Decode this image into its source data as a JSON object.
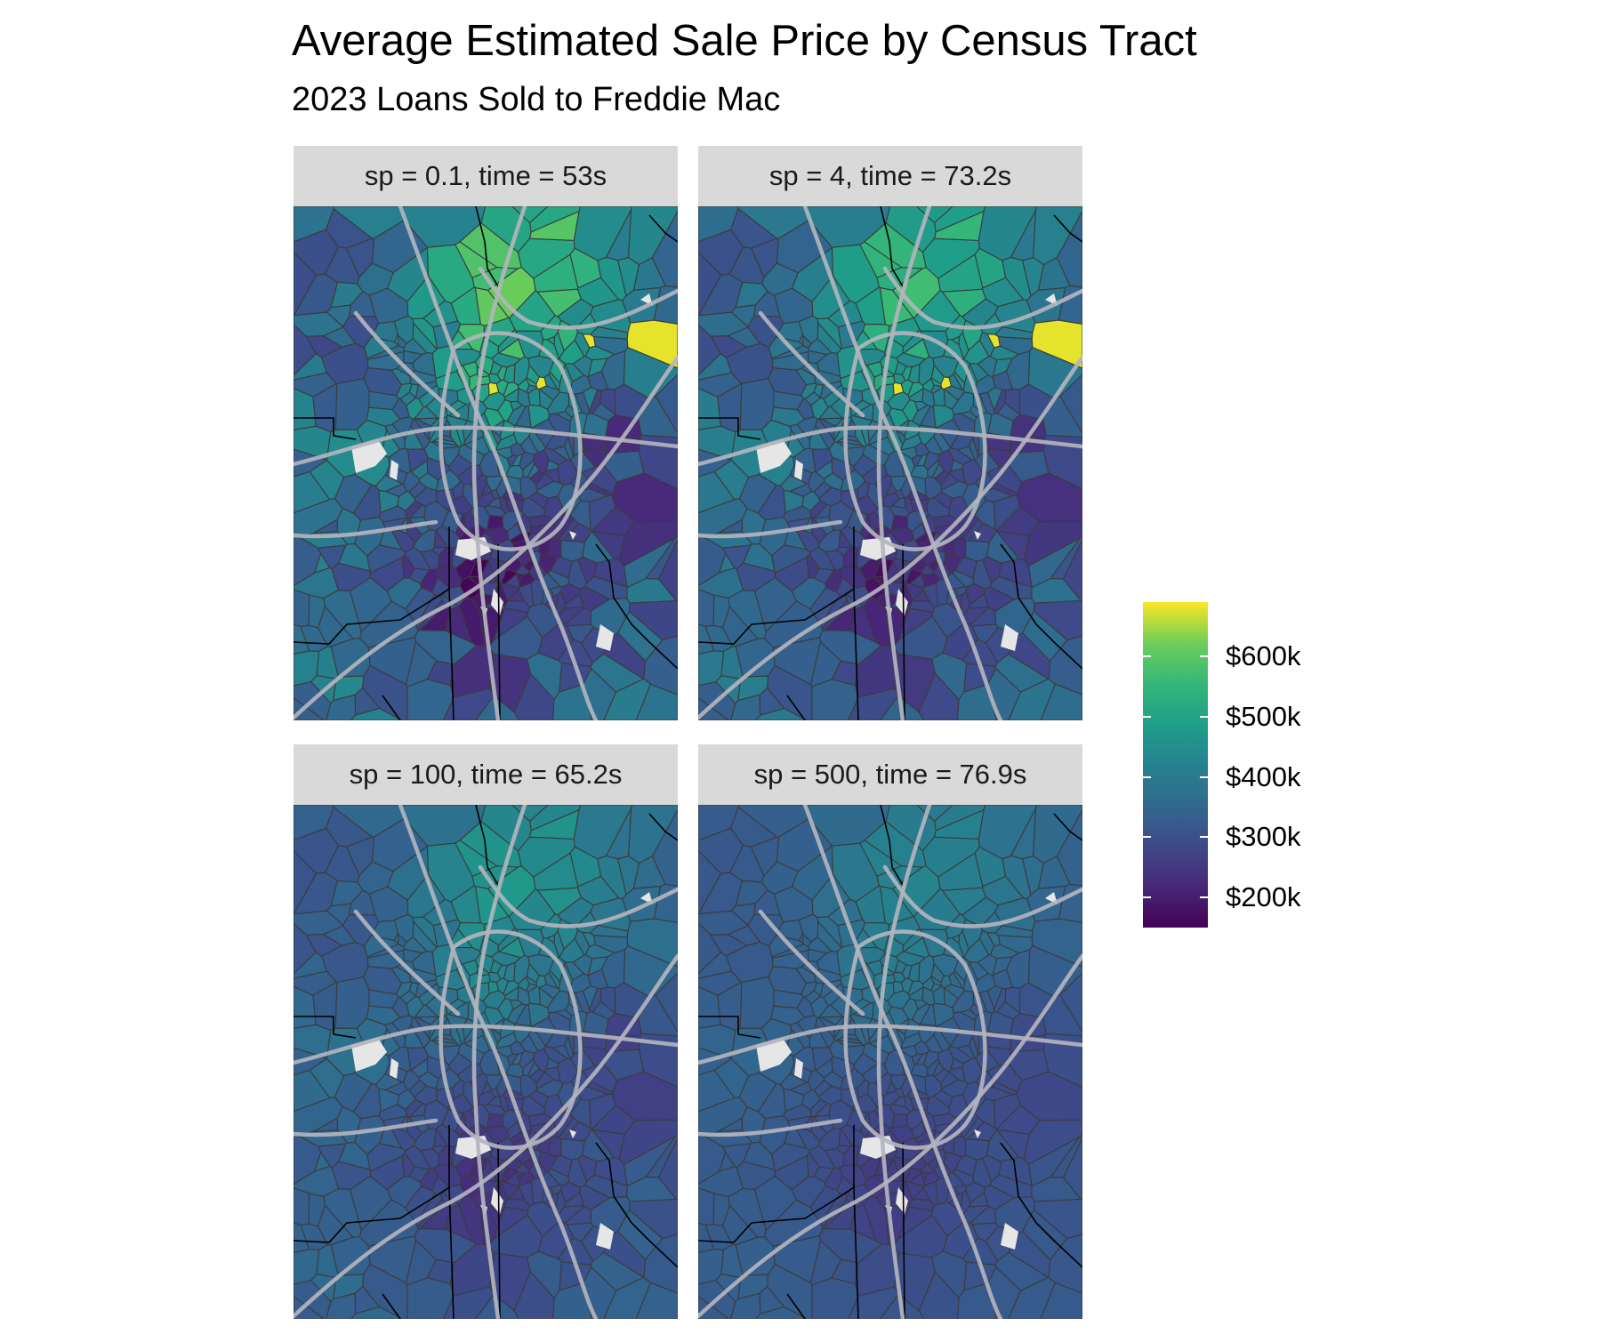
{
  "title": "Average Estimated Sale Price by Census Tract",
  "subtitle": "2023 Loans Sold to Freddie Mac",
  "panels": [
    {
      "label": "sp = 0.1, time = 53s",
      "smoothing": 0.1,
      "time_s": 53
    },
    {
      "label": "sp = 4, time = 73.2s",
      "smoothing": 4,
      "time_s": 73.2
    },
    {
      "label": "sp = 100, time = 65.2s",
      "smoothing": 100,
      "time_s": 65.2
    },
    {
      "label": "sp = 500, time = 76.9s",
      "smoothing": 500,
      "time_s": 76.9
    }
  ],
  "legend": {
    "labels": [
      "$600k",
      "$500k",
      "$400k",
      "$300k",
      "$200k"
    ],
    "values": [
      600000,
      500000,
      400000,
      300000,
      200000
    ],
    "range": [
      150000,
      690000
    ],
    "palette": "viridis"
  },
  "colors": {
    "strip_background": "#d9d9d9",
    "highway": "#b4b4be",
    "tract_border": "#3b3b3b",
    "county_border": "#000000",
    "no_data": "#e6e6e6"
  }
}
